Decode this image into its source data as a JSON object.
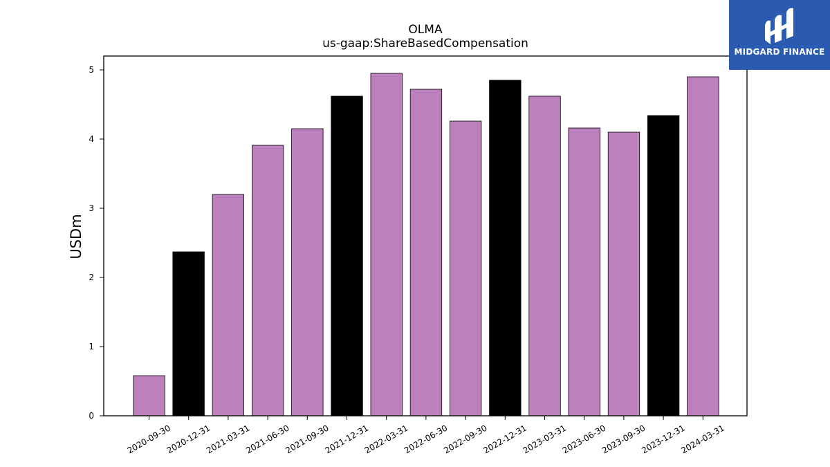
{
  "chart_data": {
    "type": "bar",
    "title": "OLMA",
    "subtitle": "us-gaap:ShareBasedCompensation",
    "xlabel": "",
    "ylabel": "USDm",
    "ylim": [
      0,
      5.2
    ],
    "yticks": [
      0,
      1,
      2,
      3,
      4,
      5
    ],
    "grid": false,
    "categories": [
      "2020-09-30",
      "2020-12-31",
      "2021-03-31",
      "2021-06-30",
      "2021-09-30",
      "2021-12-31",
      "2022-03-31",
      "2022-06-30",
      "2022-09-30",
      "2022-12-31",
      "2023-03-31",
      "2023-06-30",
      "2023-09-30",
      "2023-12-31",
      "2024-03-31"
    ],
    "values": [
      0.58,
      2.37,
      3.2,
      3.91,
      4.15,
      4.62,
      4.95,
      4.72,
      4.26,
      4.85,
      4.62,
      4.16,
      4.1,
      4.34,
      4.9
    ],
    "colors": {
      "quarter": "#bc80bd",
      "year_end": "#000000"
    },
    "bar_colors": [
      "#bc80bd",
      "#000000",
      "#bc80bd",
      "#bc80bd",
      "#bc80bd",
      "#000000",
      "#bc80bd",
      "#bc80bd",
      "#bc80bd",
      "#000000",
      "#bc80bd",
      "#bc80bd",
      "#bc80bd",
      "#000000",
      "#bc80bd"
    ]
  },
  "logo": {
    "text": "MIDGARD FINANCE",
    "icon": "midgard-logo-icon"
  }
}
